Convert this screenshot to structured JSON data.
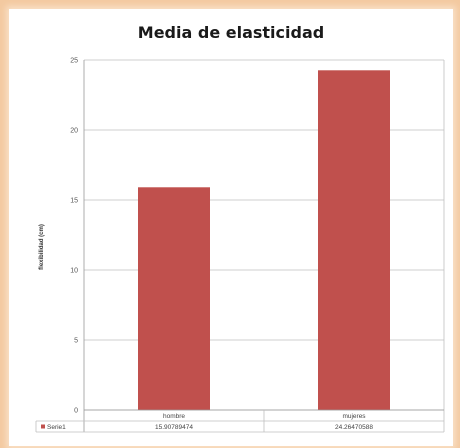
{
  "chart_data": {
    "type": "bar",
    "title": "Media de elasticidad",
    "ylabel": "flexibilidad (cm)",
    "xlabel": "",
    "categories": [
      "hombre",
      "mujeres"
    ],
    "series": [
      {
        "name": "Serie1",
        "values": [
          15.90789474,
          24.26470588
        ],
        "color": "#c0504d"
      }
    ],
    "table_values": [
      "15.90789474",
      "24.26470588"
    ],
    "ylim": [
      0,
      25
    ],
    "yticks": [
      0,
      5,
      10,
      15,
      20,
      25
    ],
    "grid": true,
    "legend": "data-table"
  }
}
